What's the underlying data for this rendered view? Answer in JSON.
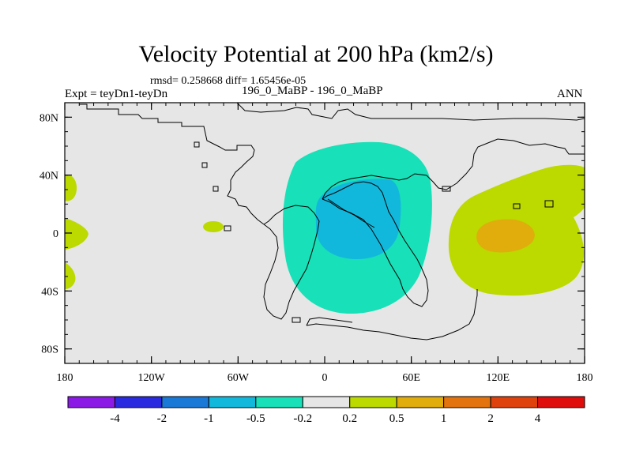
{
  "title": "Velocity Potential at 200 hPa (km2/s)",
  "stats_text": "rmsd= 0.258668 diff= 1.65456e-05",
  "left_label": "Expt = teyDn1-teyDn",
  "center_label": "196_0_MaBP - 196_0_MaBP",
  "right_label": "ANN",
  "chart_data": {
    "type": "contour-map",
    "title": "Velocity Potential at 200 hPa (km2/s)",
    "variable": "Velocity Potential",
    "level": "200 hPa",
    "units": "km2/s",
    "x_range": [
      -180,
      180
    ],
    "y_range": [
      -90,
      90
    ],
    "x_ticks": [
      {
        "value": -180,
        "label": "180"
      },
      {
        "value": -120,
        "label": "120W"
      },
      {
        "value": -60,
        "label": "60W"
      },
      {
        "value": 0,
        "label": "0"
      },
      {
        "value": 60,
        "label": "60E"
      },
      {
        "value": 120,
        "label": "120E"
      },
      {
        "value": 180,
        "label": "180"
      }
    ],
    "y_ticks": [
      {
        "value": 80,
        "label": "80N"
      },
      {
        "value": 40,
        "label": "40N"
      },
      {
        "value": 0,
        "label": "0"
      },
      {
        "value": -40,
        "label": "40S"
      },
      {
        "value": -80,
        "label": "80S"
      }
    ],
    "colorbar": {
      "levels": [
        "-4",
        "-2",
        "-1",
        "-0.5",
        "-0.2",
        "0.2",
        "0.5",
        "1",
        "2",
        "4"
      ],
      "colors": [
        "#8c1ae6",
        "#2a2ae0",
        "#1a78d6",
        "#12b8dc",
        "#18e0b8",
        "#e6e6e6",
        "#bcd900",
        "#e0ad0c",
        "#e3730f",
        "#e0420d",
        "#e00d0d"
      ]
    },
    "features": [
      {
        "name": "positive-lobe-east",
        "level": "0.2 to 0.5",
        "center": [
          130,
          10
        ]
      },
      {
        "name": "positive-core-east",
        "level": "0.5 to 1",
        "center": [
          118,
          0
        ]
      },
      {
        "name": "negative-lobe-atlantic",
        "level": "-0.5 to -0.2",
        "center": [
          10,
          10
        ]
      },
      {
        "name": "negative-core-africa",
        "level": "-1 to -0.5",
        "center": [
          10,
          10
        ]
      },
      {
        "name": "positive-patch-west-north",
        "level": "0.2 to 0.5",
        "center": [
          -178,
          32
        ]
      },
      {
        "name": "positive-patch-west-eq",
        "level": "0.2 to 0.5",
        "center": [
          -178,
          0
        ]
      },
      {
        "name": "positive-patch-west-south",
        "level": "0.2 to 0.5",
        "center": [
          -178,
          -30
        ]
      },
      {
        "name": "positive-patch-pacific",
        "level": "0.2 to 0.5",
        "center": [
          -78,
          4
        ]
      }
    ]
  }
}
